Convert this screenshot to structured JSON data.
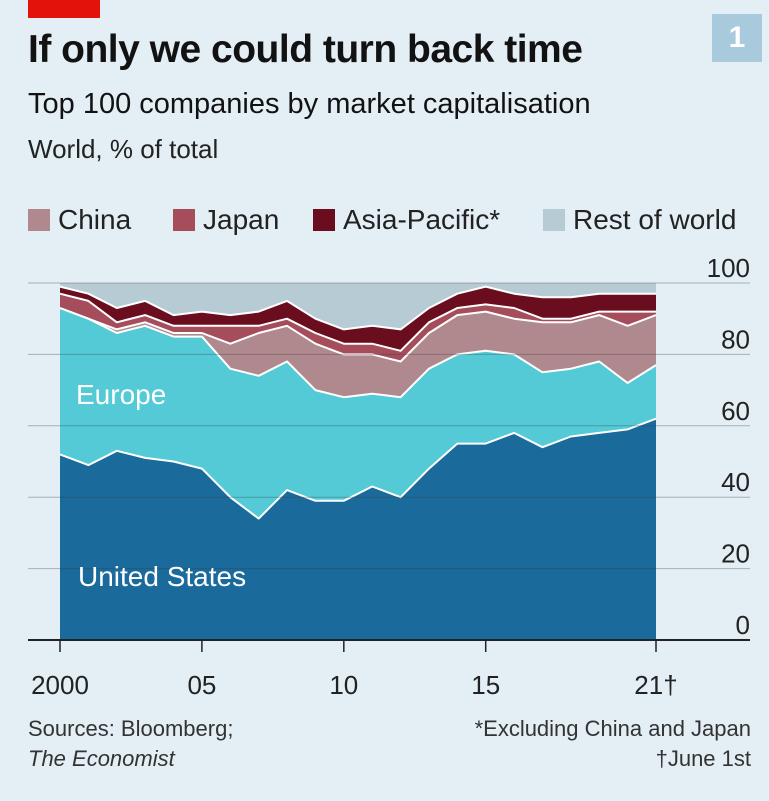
{
  "badge": "1",
  "title": "If only we could turn back time",
  "subtitle": "Top 100 companies by market capitalisation",
  "unit": "World, % of total",
  "sources_line1": "Sources: Bloomberg;",
  "sources_line2": "The Economist",
  "footnote1": "*Excluding China and Japan",
  "footnote2": "†June 1st",
  "colors": {
    "background": "#e3eef5",
    "united_states": "#1a6a9c",
    "europe": "#54cad7",
    "china": "#b0898f",
    "japan": "#a64d5b",
    "asia_pacific": "#6a0d1f",
    "rest_of_world": "#b7cbd5",
    "accent_red": "#e3120b",
    "badge": "#a9c9dd"
  },
  "chart_data": {
    "type": "area",
    "stacked": true,
    "title": "If only we could turn back time",
    "subtitle": "Top 100 companies by market capitalisation",
    "ylabel": "World, % of total",
    "ylim": [
      0,
      100
    ],
    "y_ticks": [
      "0",
      "20",
      "40",
      "60",
      "80",
      "100"
    ],
    "x_ticks": [
      "2000",
      "05",
      "10",
      "15",
      "21†"
    ],
    "legend": [
      "China",
      "Japan",
      "Asia-Pacific*",
      "Rest of world"
    ],
    "legend_position": "top",
    "x": [
      2000,
      2001,
      2002,
      2003,
      2004,
      2005,
      2006,
      2007,
      2008,
      2009,
      2010,
      2011,
      2012,
      2013,
      2014,
      2015,
      2016,
      2017,
      2018,
      2019,
      2020,
      2021
    ],
    "series": [
      {
        "name": "United States",
        "values": [
          52,
          49,
          53,
          51,
          50,
          48,
          40,
          34,
          42,
          39,
          39,
          43,
          40,
          48,
          55,
          55,
          58,
          54,
          57,
          58,
          59,
          62
        ]
      },
      {
        "name": "Europe",
        "values": [
          41,
          41,
          33,
          37,
          35,
          37,
          36,
          40,
          36,
          31,
          29,
          26,
          28,
          28,
          25,
          26,
          22,
          21,
          19,
          20,
          13,
          15
        ]
      },
      {
        "name": "China",
        "values": [
          0,
          0,
          1,
          1,
          1,
          1,
          7,
          12,
          10,
          13,
          12,
          11,
          10,
          10,
          11,
          11,
          10,
          14,
          13,
          13,
          16,
          14
        ]
      },
      {
        "name": "Japan",
        "values": [
          4,
          5,
          2,
          2,
          2,
          2,
          5,
          2,
          2,
          3,
          3,
          3,
          3,
          3,
          2,
          2,
          3,
          1,
          1,
          1,
          4,
          1
        ]
      },
      {
        "name": "Asia-Pacific*",
        "values": [
          2,
          2,
          4,
          4,
          3,
          4,
          3,
          4,
          5,
          4,
          4,
          5,
          6,
          4,
          4,
          5,
          4,
          6,
          6,
          5,
          5,
          5
        ]
      },
      {
        "name": "Rest of world",
        "values": [
          1,
          3,
          7,
          5,
          9,
          8,
          9,
          8,
          5,
          10,
          13,
          12,
          13,
          7,
          3,
          1,
          3,
          4,
          4,
          3,
          3,
          3
        ]
      }
    ],
    "series_labels": [
      "United States",
      "Europe"
    ]
  }
}
